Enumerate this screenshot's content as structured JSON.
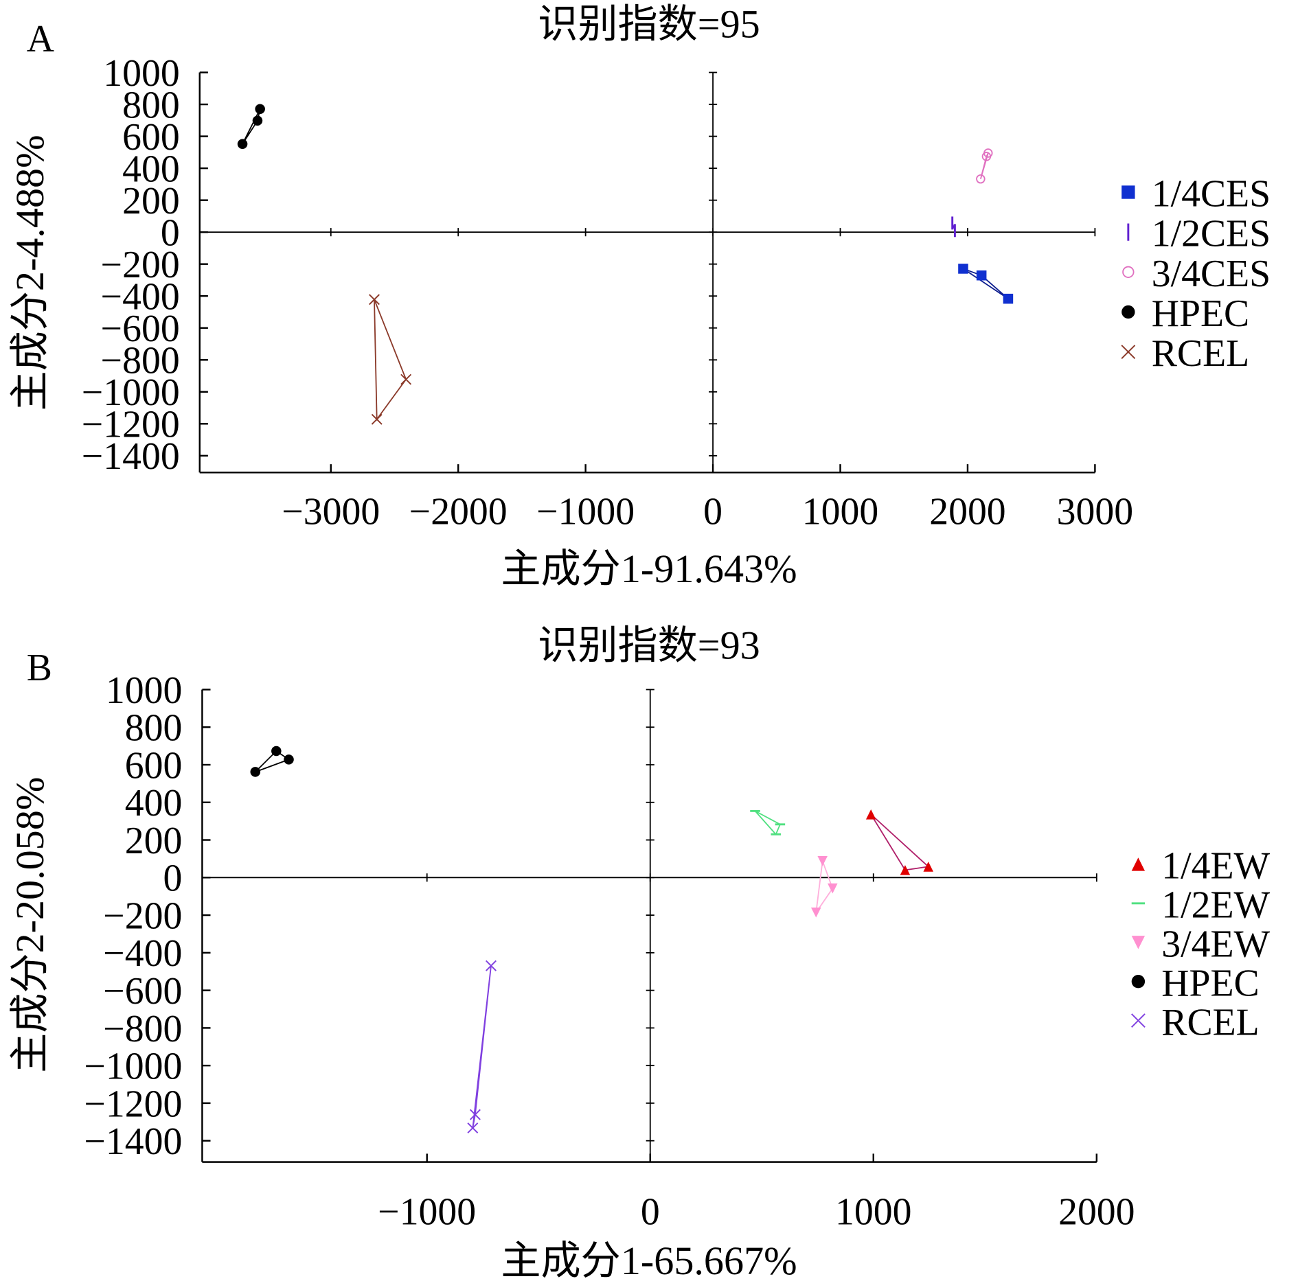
{
  "chart_data": [
    {
      "type": "scatter",
      "panel_label": "A",
      "title": "识别指数=95",
      "xlabel": "主成分1-91.643%",
      "ylabel": "主成分2-4.488%",
      "xlim": [
        -4030,
        3000
      ],
      "ylim": [
        -1505,
        1000
      ],
      "xticks": [
        -3000,
        -2000,
        -1000,
        0,
        1000,
        2000,
        3000
      ],
      "xtick_labels": [
        "−3000",
        "−2000",
        "−1000",
        "0",
        "1000",
        "2000",
        "3000"
      ],
      "yticks": [
        1000,
        800,
        600,
        400,
        200,
        0,
        -200,
        -400,
        -600,
        -800,
        -1000,
        -1200,
        -1400
      ],
      "ytick_labels": [
        "1000",
        "800",
        "600",
        "400",
        "200",
        "0",
        "−200",
        "−400",
        "−600",
        "−800",
        "−1000",
        "−1200",
        "−1400"
      ],
      "legend_position": "right",
      "series": [
        {
          "name": "1/4CES",
          "marker": "square",
          "color": "#1030d0",
          "line": "#102090",
          "points": [
            [
              1965,
              -229
            ],
            [
              2109,
              -271
            ],
            [
              2318,
              -417
            ]
          ]
        },
        {
          "name": "1/2CES",
          "marker": "bar",
          "color": "#6020d0",
          "line": "#6020d0",
          "points": [
            [
              1880,
              57
            ],
            [
              1900,
              10
            ]
          ]
        },
        {
          "name": "3/4CES",
          "marker": "circle-open",
          "color": "#e070c0",
          "line": "#e070c0",
          "points": [
            [
              2102,
              333
            ],
            [
              2161,
              495
            ],
            [
              2148,
              474
            ]
          ]
        },
        {
          "name": "HPEC",
          "marker": "circle",
          "color": "#000000",
          "line": "#000000",
          "points": [
            [
              -3694,
              552
            ],
            [
              -3576,
              698
            ],
            [
              -3556,
              771
            ]
          ]
        },
        {
          "name": "RCEL",
          "marker": "x",
          "color": "#8b3a2a",
          "line": "#8b3a2a",
          "points": [
            [
              -2659,
              -422
            ],
            [
              -2410,
              -922
            ],
            [
              -2639,
              -1172
            ]
          ]
        }
      ]
    },
    {
      "type": "scatter",
      "panel_label": "B",
      "title": "识别指数=93",
      "xlabel": "主成分1-65.667%",
      "ylabel": "主成分2-20.058%",
      "xlim": [
        -2007,
        2000
      ],
      "ylim": [
        -1513,
        1000
      ],
      "xticks": [
        -1000,
        0,
        1000,
        2000
      ],
      "xtick_labels": [
        "−1000",
        "0",
        "1000",
        "2000"
      ],
      "yticks": [
        1000,
        800,
        600,
        400,
        200,
        0,
        -200,
        -400,
        -600,
        -800,
        -1000,
        -1200,
        -1400
      ],
      "ytick_labels": [
        "1000",
        "800",
        "600",
        "400",
        "200",
        "0",
        "−200",
        "−400",
        "−600",
        "−800",
        "−1000",
        "−1200",
        "−1400"
      ],
      "legend_position": "right",
      "series": [
        {
          "name": "1/4EW",
          "marker": "triangle-up",
          "color": "#e00000",
          "line": "#b0206a",
          "points": [
            [
              989,
              336
            ],
            [
              1246,
              58
            ],
            [
              1142,
              40
            ]
          ]
        },
        {
          "name": "1/2EW",
          "marker": "dash",
          "color": "#50e080",
          "line": "#50e080",
          "points": [
            [
              470,
              354
            ],
            [
              582,
              283
            ],
            [
              563,
              230
            ]
          ]
        },
        {
          "name": "3/4EW",
          "marker": "triangle-down",
          "color": "#ff90d0",
          "line": "#ffb0dc",
          "points": [
            [
              772,
              88
            ],
            [
              817,
              -58
            ],
            [
              743,
              -186
            ]
          ]
        },
        {
          "name": "HPEC",
          "marker": "circle",
          "color": "#000000",
          "line": "#000000",
          "points": [
            [
              -1769,
              562
            ],
            [
              -1675,
              673
            ],
            [
              -1619,
              628
            ]
          ]
        },
        {
          "name": "RCEL",
          "marker": "x",
          "color": "#8040e0",
          "line": "#8040e0",
          "points": [
            [
              -713,
              -469
            ],
            [
              -784,
              -1261
            ],
            [
              -795,
              -1332
            ]
          ]
        }
      ]
    }
  ]
}
